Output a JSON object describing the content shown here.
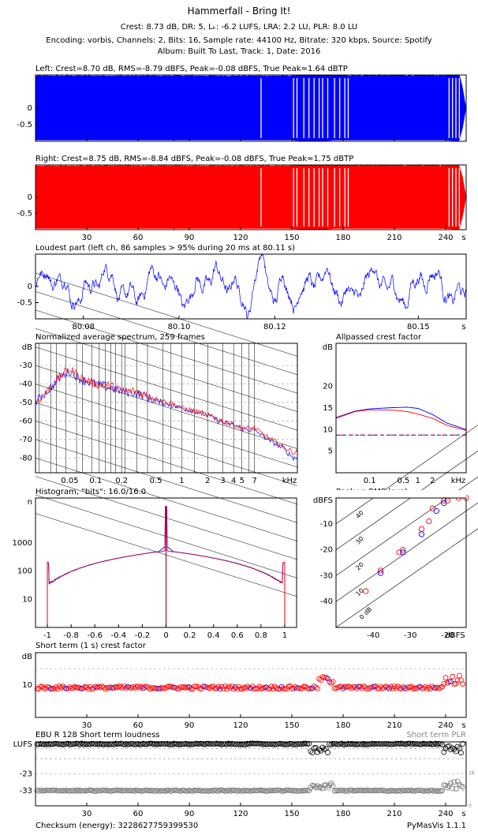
{
  "header": {
    "title": "Hammerfall - Bring It!",
    "line1": "Crest: 8.73 dB,  DR: 5,  Lₖ: -6.2 LUFS,  LRA: 2.2 LU,  PLR: 8.0 LU",
    "line2": "Encoding: vorbis,  Channels: 2,  Bits: 16,  Sample rate: 44100 Hz,  Bitrate: 320 kbps,  Source: Spotify",
    "line3": "Album: Built To Last,  Track: 1,  Date: 2016"
  },
  "footer": {
    "checksum": "Checksum (energy): 3228627759399530",
    "version": "PyMasVis 1.1.1"
  },
  "colors": {
    "left": "#0000ff",
    "right": "#ff0000",
    "mix": "#b0004a",
    "grid": "#888888"
  },
  "chart_data": [
    {
      "id": "left",
      "type": "area",
      "title": "Left: Crest=8.70 dB, RMS=-8.79 dBFS, Peak=-0.08 dBFS, True Peak≈1.64 dBTP",
      "yticks": [
        "0",
        "-0.5"
      ],
      "ylim": [
        -1,
        1
      ],
      "xlim": [
        0,
        252
      ],
      "envelope": {
        "x": [
          0,
          150,
          155,
          165,
          170,
          175,
          180,
          240,
          245,
          248,
          250,
          252
        ],
        "upper": [
          0.97,
          0.97,
          0.99,
          0.99,
          0.99,
          0.97,
          0.97,
          0.97,
          0.99,
          0.99,
          0.6,
          0.0
        ]
      }
    },
    {
      "id": "right",
      "type": "area",
      "title": "Right: Crest=8.75 dB, RMS=-8.84 dBFS, Peak=-0.08 dBFS, True Peak≈1.75 dBTP",
      "yticks": [
        "0",
        "-0.5"
      ],
      "ylim": [
        -1,
        1
      ],
      "xlim": [
        0,
        252
      ],
      "xticks": [
        30,
        60,
        90,
        120,
        150,
        180,
        210,
        240
      ],
      "xunit": "s",
      "envelope": {
        "x": [
          0,
          150,
          155,
          165,
          170,
          175,
          180,
          240,
          245,
          248,
          250,
          252
        ],
        "upper": [
          0.97,
          0.97,
          0.99,
          0.99,
          0.99,
          0.97,
          0.97,
          0.97,
          0.99,
          0.99,
          0.6,
          0.0
        ]
      }
    },
    {
      "id": "loudest",
      "type": "line",
      "title": "Loudest part (left ch, 86 samples > 95% during 20 ms at 80.11 s)",
      "yticks": [
        "0",
        "-0.5"
      ],
      "ylim": [
        -1,
        1
      ],
      "xlim": [
        80.07,
        80.16
      ],
      "xticks": [
        "80.08",
        "80.10",
        "80.12",
        "80.15"
      ],
      "xticks_pos": [
        80.08,
        80.1,
        80.12,
        80.15
      ],
      "xunit": "s"
    },
    {
      "id": "spectrum",
      "type": "line",
      "title": "Normalized average spectrum, 259 frames",
      "ylabel": "dB",
      "yticks": [
        "-30",
        "-40",
        "-50",
        "-60",
        "-70",
        "-80"
      ],
      "ylim": [
        -88,
        -18
      ],
      "xticks": [
        "0.05",
        "0.1",
        "0.2",
        "0.5",
        "1",
        "2",
        "3",
        "4",
        "5",
        "7"
      ],
      "xticks_val": [
        0.05,
        0.1,
        0.2,
        0.5,
        1,
        2,
        3,
        4,
        5,
        7
      ],
      "xlim_khz": [
        0.02,
        22
      ],
      "xunit": "kHz",
      "series": [
        {
          "name": "",
          "x": [
            0.02,
            0.03,
            0.04,
            0.05,
            0.07,
            0.1,
            0.15,
            0.2,
            0.3,
            0.5,
            0.7,
            1,
            1.5,
            2,
            3,
            4,
            5,
            7,
            10,
            12,
            15,
            20
          ],
          "y": [
            -50,
            -42,
            -36,
            -33,
            -38,
            -40,
            -42,
            -44,
            -45,
            -49,
            -51,
            -53,
            -55,
            -57,
            -61,
            -62,
            -64,
            -65,
            -70,
            -72,
            -75,
            -80
          ]
        },
        {
          "name": "",
          "x": [
            0.02,
            0.03,
            0.04,
            0.05,
            0.07,
            0.1,
            0.15,
            0.2,
            0.3,
            0.5,
            0.7,
            1,
            1.5,
            2,
            3,
            4,
            5,
            7,
            10,
            12,
            15,
            20
          ],
          "y": [
            -50,
            -42,
            -35,
            -32,
            -37,
            -40,
            -41,
            -44,
            -44,
            -48,
            -50,
            -53,
            -55,
            -57,
            -60,
            -62,
            -64,
            -64,
            -69,
            -71,
            -74,
            -77
          ]
        }
      ]
    },
    {
      "id": "allpass",
      "type": "line",
      "title": "Allpassed crest factor",
      "ylabel": "dB",
      "yticks": [
        "20",
        "15",
        "10",
        "5"
      ],
      "ylim": [
        0,
        30
      ],
      "xticks": [
        "0.1",
        "0.5",
        "1",
        "2"
      ],
      "xticks_val": [
        0.1,
        0.5,
        1,
        2
      ],
      "xlim_khz": [
        0.02,
        10
      ],
      "xunit": "kHz",
      "series": [
        {
          "name": "",
          "x": [
            0.02,
            0.05,
            0.1,
            0.3,
            0.6,
            1,
            2,
            4,
            10
          ],
          "y": [
            12.8,
            14.3,
            14.8,
            15.1,
            15.2,
            14.9,
            13.5,
            11.5,
            10
          ]
        },
        {
          "name": "",
          "x": [
            0.02,
            0.05,
            0.1,
            0.3,
            0.6,
            1,
            2,
            4,
            10
          ],
          "y": [
            12.6,
            14.2,
            14.6,
            14.5,
            14.2,
            13.6,
            12.6,
            11.0,
            9.8
          ]
        }
      ],
      "reference_y": 8.73
    },
    {
      "id": "histogram",
      "type": "line",
      "title": "Histogram, \"bits\": 16.0/16.0",
      "ylabel": "n",
      "yticks": [
        "1000",
        "100",
        "10"
      ],
      "yticks_val": [
        1000,
        100,
        10
      ],
      "ylim_log": [
        1,
        40000
      ],
      "xticks": [
        "-1",
        "-0.8",
        "-0.6",
        "-0.4",
        "-0.2",
        "0",
        "0.2",
        "0.4",
        "0.6",
        "0.8",
        "1"
      ],
      "xticks_val": [
        -1,
        -0.8,
        -0.6,
        -0.4,
        -0.2,
        0,
        0.2,
        0.4,
        0.6,
        0.8,
        1
      ],
      "xlim": [
        -1.1,
        1.1
      ],
      "series": [
        {
          "name": "",
          "x": [
            -1,
            -0.99,
            -0.9,
            -0.8,
            -0.6,
            -0.4,
            -0.2,
            -0.05,
            0,
            0.05,
            0.2,
            0.4,
            0.6,
            0.8,
            0.9,
            0.99,
            1
          ],
          "y": [
            200,
            35,
            45,
            60,
            120,
            250,
            380,
            500,
            20000,
            500,
            380,
            250,
            120,
            60,
            45,
            35,
            200
          ]
        }
      ]
    },
    {
      "id": "peakrms",
      "type": "scatter",
      "title": "Peak vs RMS level",
      "ylabel": "dBFS",
      "xlabel": "dBFS",
      "yticks": [
        "-10",
        "-20",
        "-30",
        "-40"
      ],
      "xticks": [
        "-40",
        "-30",
        "-20"
      ],
      "xlim": [
        -50,
        -15
      ],
      "ylim": [
        -50,
        0
      ],
      "diagonal_labels": [
        "40",
        "30",
        "20",
        "10",
        "0 dB"
      ],
      "series": [
        {
          "name": "",
          "x": [
            -42,
            -38,
            -33,
            -32,
            -27,
            -25,
            -24,
            -21,
            -20,
            -17,
            -15
          ],
          "y": [
            -36,
            -28,
            -21,
            -20,
            -12,
            -9,
            -4,
            -1,
            -1,
            0,
            0
          ]
        },
        {
          "name": "",
          "x": [
            -38,
            -32,
            -27,
            -23,
            -21
          ],
          "y": [
            -29,
            -21,
            -14,
            -5,
            -2
          ]
        }
      ]
    },
    {
      "id": "crest_st",
      "type": "scatter",
      "title": "Short term (1 s) crest factor",
      "ylabel": "dB",
      "yticks": [
        "10"
      ],
      "ylim": [
        0,
        20
      ],
      "xlim": [
        0,
        252
      ],
      "xticks": [
        30,
        60,
        90,
        120,
        150,
        180,
        210,
        240
      ],
      "xunit": "s"
    },
    {
      "id": "ebu",
      "type": "scatter",
      "title": "EBU R 128 Short term loudness",
      "right_title": "Short term PLR",
      "ylabel": "LUFS",
      "yticks": [
        "-23",
        "-33"
      ],
      "ylim": [
        -42,
        -4
      ],
      "xlim": [
        0,
        252
      ],
      "xticks": [
        30,
        60,
        90,
        120,
        150,
        180,
        210,
        240
      ],
      "xunit": "s",
      "right_ticks": [
        "18",
        "0"
      ]
    }
  ]
}
